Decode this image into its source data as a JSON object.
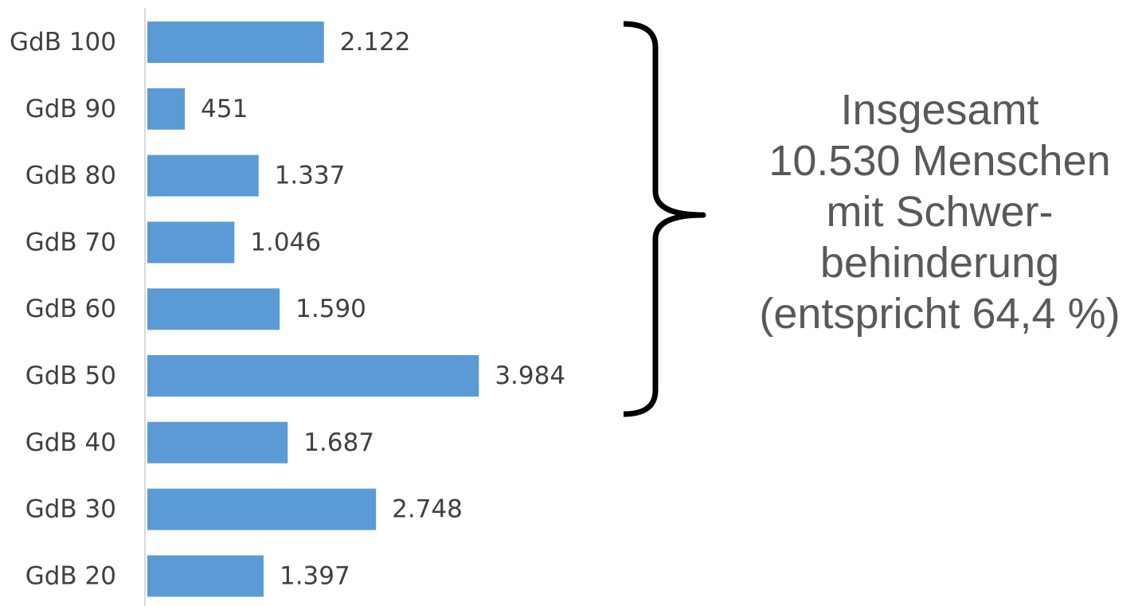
{
  "chart_data": {
    "type": "bar",
    "orientation": "horizontal",
    "categories": [
      "GdB 100",
      "GdB 90",
      "GdB 80",
      "GdB 70",
      "GdB 60",
      "GdB 50",
      "GdB 40",
      "GdB 30",
      "GdB 20"
    ],
    "values": [
      2122,
      451,
      1337,
      1046,
      1590,
      3984,
      1687,
      2748,
      1397
    ],
    "value_labels": [
      "2.122",
      "451",
      "1.337",
      "1.046",
      "1.590",
      "3.984",
      "1.687",
      "2.748",
      "1.397"
    ],
    "bar_color": "#5B9BD5",
    "grid": false,
    "legend": "none"
  },
  "annotation": {
    "lines": [
      "Insgesamt",
      "10.530 Menschen",
      "mit Schwer-",
      "behinderung",
      "(entspricht 64,4 %)"
    ],
    "brace_groups": [
      "GdB 100",
      "GdB 50"
    ]
  }
}
